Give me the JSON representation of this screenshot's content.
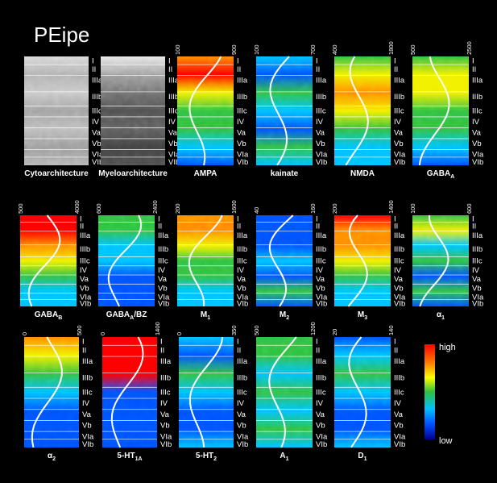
{
  "title": "PEipe",
  "layers": [
    "I",
    "II",
    "IIIa",
    "IIIb",
    "IIIc",
    "IV",
    "Va",
    "Vb",
    "VIa",
    "VIb"
  ],
  "panels": [
    {
      "label": "Cytoarchitecture"
    },
    {
      "label": "Myeloarchitecture"
    },
    {
      "label": "AMPA",
      "min": 100,
      "max": 900
    },
    {
      "label": "kainate",
      "min": 100,
      "max": 700
    },
    {
      "label": "NMDA",
      "min": 400,
      "max": 1800
    },
    {
      "label": "GABA",
      "sub": "A",
      "min": 500,
      "max": 2500
    },
    {
      "label": "GABA",
      "sub": "B",
      "min": 500,
      "max": 4000
    },
    {
      "label": "GABA",
      "sub": "A",
      "suffix": "/BZ",
      "min": 600,
      "max": 2400
    },
    {
      "label": "M",
      "sub": "1",
      "min": 200,
      "max": 1600
    },
    {
      "label": "M",
      "sub": "2",
      "min": 40,
      "max": 160
    },
    {
      "label": "M",
      "sub": "3",
      "min": 200,
      "max": 1400
    },
    {
      "label": "α",
      "sub": "1",
      "min": 100,
      "max": 600
    },
    {
      "label": "α",
      "sub": "2",
      "min": 0,
      "max": 500
    },
    {
      "label": "5-HT",
      "sub": "1A",
      "min": 0,
      "max": 1400
    },
    {
      "label": "5-HT",
      "sub": "2",
      "min": 0,
      "max": 350
    },
    {
      "label": "A",
      "sub": "1",
      "min": 500,
      "max": 1200
    },
    {
      "label": "D",
      "sub": "1",
      "min": 20,
      "max": 140
    }
  ],
  "legend": {
    "high": "high",
    "low": "low"
  }
}
